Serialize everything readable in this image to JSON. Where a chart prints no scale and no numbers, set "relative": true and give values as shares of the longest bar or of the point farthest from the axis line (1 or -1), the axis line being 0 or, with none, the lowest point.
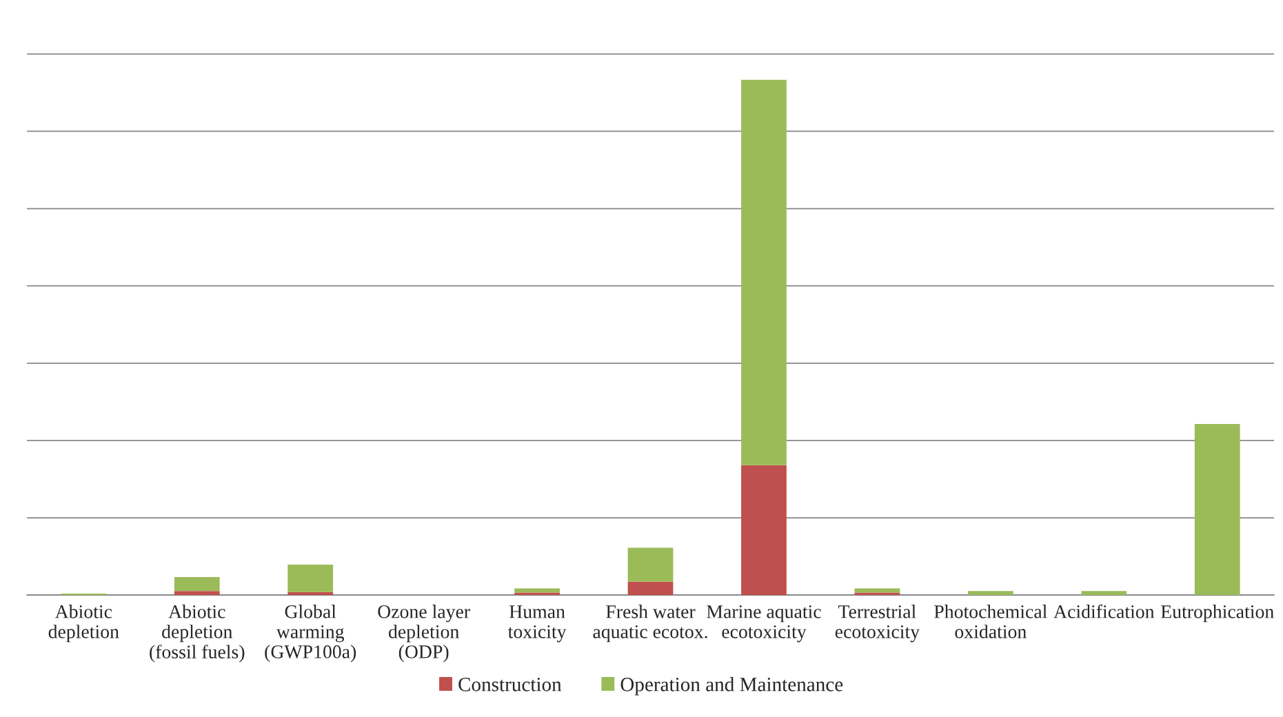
{
  "chart_data": {
    "type": "bar",
    "stacked": true,
    "relative": true,
    "grid": "y",
    "legend": "bottom",
    "categories": [
      "Abiotic\ndepletion",
      "Abiotic\ndepletion\n(fossil fuels)",
      "Global\nwarming\n(GWP100a)",
      "Ozone layer\ndepletion\n(ODP)",
      "Human\ntoxicity",
      "Fresh water\naquatic ecotox.",
      "Marine aquatic\necotoxicity",
      "Terrestrial\necotoxicity",
      "Photochemical\noxidation",
      "Acidification",
      "Eutrophication"
    ],
    "series": [
      {
        "name": "Construction",
        "color": "#c0504d",
        "values": [
          0.0,
          0.008,
          0.006,
          0.0,
          0.005,
          0.026,
          0.252,
          0.005,
          0.0,
          0.0,
          null
        ]
      },
      {
        "name": "Operation and Maintenance",
        "color": "#9bbb59",
        "values": [
          0.003,
          0.027,
          0.053,
          null,
          0.008,
          0.066,
          0.748,
          0.008,
          0.008,
          0.008,
          0.332
        ]
      }
    ]
  }
}
